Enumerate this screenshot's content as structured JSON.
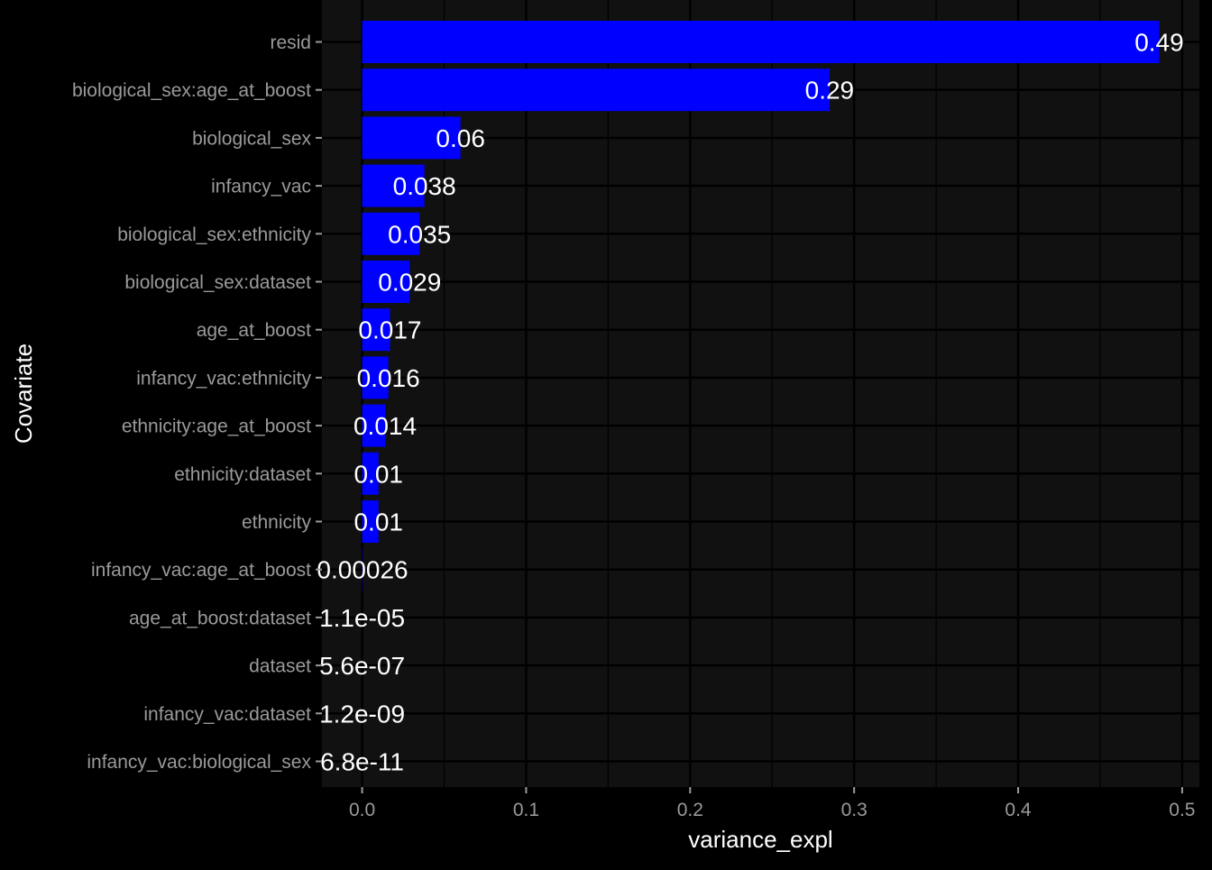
{
  "chart_data": {
    "type": "bar",
    "orientation": "horizontal",
    "xlabel": "variance_expl",
    "ylabel": "Covariate",
    "xlim": [
      -0.0245,
      0.5105
    ],
    "x_ticks": [
      0.0,
      0.1,
      0.2,
      0.3,
      0.4,
      0.5
    ],
    "x_tick_labels": [
      "0.0",
      "0.1",
      "0.2",
      "0.3",
      "0.4",
      "0.5"
    ],
    "grid": true,
    "legend": "none",
    "bar_color": "#0000ff",
    "panel_color": "#111111",
    "grid_color": "#000000",
    "background_color": "#000000",
    "categories": [
      "resid",
      "biological_sex:age_at_boost",
      "biological_sex",
      "infancy_vac",
      "biological_sex:ethnicity",
      "biological_sex:dataset",
      "age_at_boost",
      "infancy_vac:ethnicity",
      "ethnicity:age_at_boost",
      "ethnicity:dataset",
      "ethnicity",
      "infancy_vac:age_at_boost",
      "age_at_boost:dataset",
      "dataset",
      "infancy_vac:dataset",
      "infancy_vac:biological_sex"
    ],
    "values": [
      0.486,
      0.285,
      0.06,
      0.038,
      0.035,
      0.029,
      0.017,
      0.016,
      0.014,
      0.01,
      0.01,
      0.00026,
      1.1e-05,
      5.6e-07,
      1.2e-09,
      6.8e-11
    ],
    "data_labels": [
      "0.49",
      "0.29",
      "0.06",
      "0.038",
      "0.035",
      "0.029",
      "0.017",
      "0.016",
      "0.014",
      "0.01",
      "0.01",
      "0.00026",
      "1.1e-05",
      "5.6e-07",
      "1.2e-09",
      "6.8e-11"
    ]
  }
}
